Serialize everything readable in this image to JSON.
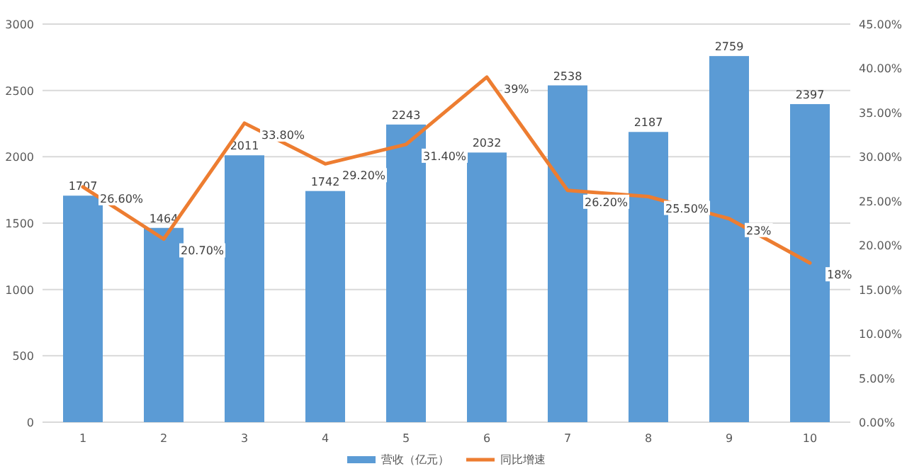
{
  "chart_data": {
    "type": "bar",
    "categories": [
      "1",
      "2",
      "3",
      "4",
      "5",
      "6",
      "7",
      "8",
      "9",
      "10"
    ],
    "series": [
      {
        "name": "营收（亿元）",
        "color": "#5b9bd5",
        "values": [
          1707,
          1464,
          2011,
          1742,
          2243,
          2032,
          2538,
          2187,
          2759,
          2397
        ],
        "value_labels": [
          "1707",
          "1464",
          "2011",
          "1742",
          "2243",
          "2032",
          "2538",
          "2187",
          "2759",
          "2397"
        ]
      },
      {
        "name": "同比增速",
        "type": "line",
        "axis": "y2",
        "color": "#ed7d31",
        "values": [
          26.6,
          20.7,
          33.8,
          29.2,
          31.4,
          39,
          26.2,
          25.5,
          23,
          18
        ],
        "value_labels": [
          "26.60%",
          "20.70%",
          "33.80%",
          "29.20%",
          "31.40%",
          "39%",
          "26.20%",
          "25.50%",
          "23%",
          "18%"
        ]
      }
    ],
    "ylim": [
      0,
      3000
    ],
    "yticks": [
      0,
      500,
      1000,
      1500,
      2000,
      2500,
      3000
    ],
    "y2lim": [
      0,
      45
    ],
    "y2ticks": [
      {
        "value": 0,
        "label": "0.00%"
      },
      {
        "value": 5,
        "label": "5.00%"
      },
      {
        "value": 10,
        "label": "10.00%"
      },
      {
        "value": 15,
        "label": "15.00%"
      },
      {
        "value": 20,
        "label": "20.00%"
      },
      {
        "value": 25,
        "label": "25.00%"
      },
      {
        "value": 30,
        "label": "30.00%"
      },
      {
        "value": 35,
        "label": "35.00%"
      },
      {
        "value": 40,
        "label": "40.00%"
      },
      {
        "value": 45,
        "label": "45.00%"
      }
    ],
    "grid": "y",
    "legend": "bottom",
    "marker": "none",
    "line_style": "solid"
  }
}
